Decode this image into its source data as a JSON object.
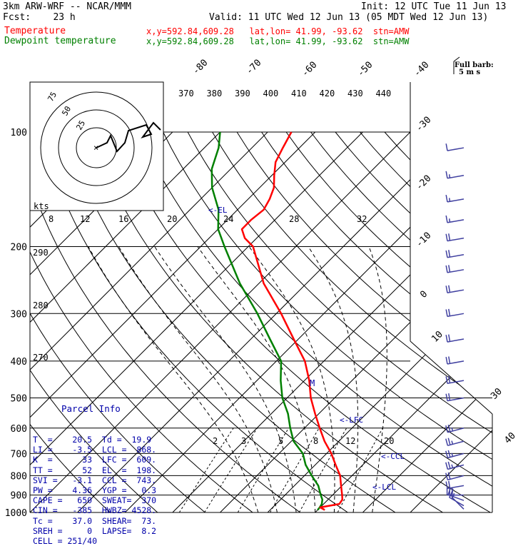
{
  "header": {
    "model": "3km ARW-WRF -- NCAR/MMM",
    "init": "Init: 12 UTC Tue 11 Jun 13",
    "fcst": "Fcst:    23 h",
    "valid": "Valid: 11 UTC Wed 12 Jun 13 (05 MDT Wed 12 Jun 13)",
    "temp_label": "Temperature",
    "dew_label": "Dewpoint temperature",
    "loc_line": "x,y=592.84,609.28   lat,lon= 41.99, -93.62  stn=AMW"
  },
  "colors": {
    "temperature": "#ff0000",
    "dewpoint": "#008000",
    "parcel_text": "#0000aa",
    "barbs": "#4040a0"
  },
  "full_barb_label": "Full barb:",
  "full_barb_value": "5 m s",
  "hodo": {
    "units": "kts",
    "ring_labels": [
      "75",
      "50",
      "25"
    ]
  },
  "parcel": {
    "title": "Parcel Info",
    "lines": [
      "T  =    20.5  Td =  19.9",
      "LI =    -3.5  LCL =  868.",
      "K  =      33  LFC =  609.",
      "TT =      52  EL  =  198.",
      "SVI =   -3.1  CCL =  743.",
      "PW =    4.36  YGP =   0.3",
      "CAPE =   650  SWEAT=  370",
      "CIN =   -385  HWBZ= 4528.",
      "Tc =    37.0  SHEAR=  73.",
      "SREH =     0  LAPSE=  8.2",
      "CELL = 251/40"
    ]
  },
  "level_markers": {
    "el": "<-EL",
    "lfc": "<-LFC",
    "ccl": "<-CCL",
    "lcl": "<-LCL",
    "m": "M"
  },
  "chart_data": {
    "type": "line",
    "subtype": "skew-T log-P",
    "pressure_axis": {
      "ticks": [
        100,
        200,
        300,
        400,
        500,
        600,
        700,
        800,
        900,
        1000
      ],
      "scale": "log",
      "range": [
        1000,
        100
      ]
    },
    "isotherm_labels": [
      -80,
      -70,
      -60,
      -50,
      -40,
      -30,
      -20,
      -10,
      0,
      10,
      20,
      30,
      40
    ],
    "theta_top_labels": [
      370,
      380,
      390,
      400,
      410,
      420,
      430,
      440
    ],
    "theta_side_labels": [
      290,
      280,
      270
    ],
    "mixing_ratio_labels": [
      2,
      3,
      5,
      8,
      12,
      20
    ],
    "theta_e_labels": [
      8,
      12,
      16,
      20,
      24,
      28,
      32
    ],
    "series": [
      {
        "name": "Temperature",
        "points": [
          [
            985,
            21.5
          ],
          [
            970,
            20.0
          ],
          [
            950,
            23.3
          ],
          [
            925,
            23.0
          ],
          [
            900,
            22.0
          ],
          [
            850,
            19.8
          ],
          [
            800,
            17.5
          ],
          [
            750,
            14.3
          ],
          [
            700,
            11.0
          ],
          [
            650,
            7.0
          ],
          [
            600,
            3.2
          ],
          [
            550,
            -0.8
          ],
          [
            500,
            -5.0
          ],
          [
            450,
            -9.0
          ],
          [
            400,
            -14.0
          ],
          [
            350,
            -21.0
          ],
          [
            300,
            -29.0
          ],
          [
            250,
            -39.0
          ],
          [
            200,
            -49.0
          ],
          [
            190,
            -52.5
          ],
          [
            180,
            -55.0
          ],
          [
            170,
            -55.0
          ],
          [
            160,
            -54.5
          ],
          [
            150,
            -55.5
          ],
          [
            140,
            -57.0
          ],
          [
            130,
            -59.5
          ],
          [
            120,
            -62.0
          ],
          [
            110,
            -63.5
          ],
          [
            100,
            -65.0
          ]
        ]
      },
      {
        "name": "Dewpoint temperature",
        "points": [
          [
            985,
            20.0
          ],
          [
            970,
            19.9
          ],
          [
            950,
            19.6
          ],
          [
            925,
            18.8
          ],
          [
            900,
            17.5
          ],
          [
            850,
            15.0
          ],
          [
            800,
            11.5
          ],
          [
            750,
            8.0
          ],
          [
            700,
            5.0
          ],
          [
            650,
            0.5
          ],
          [
            600,
            -3.0
          ],
          [
            550,
            -6.5
          ],
          [
            500,
            -11.0
          ],
          [
            450,
            -15.0
          ],
          [
            400,
            -19.0
          ],
          [
            350,
            -26.0
          ],
          [
            300,
            -34.0
          ],
          [
            250,
            -44.0
          ],
          [
            200,
            -55.0
          ],
          [
            180,
            -60.0
          ],
          [
            160,
            -64.0
          ],
          [
            140,
            -70.0
          ],
          [
            125,
            -74.0
          ],
          [
            110,
            -77.0
          ],
          [
            100,
            -80.0
          ]
        ]
      }
    ],
    "wind_barbs": [
      {
        "p": 980,
        "dir": 315,
        "spd": 5
      },
      {
        "p": 960,
        "dir": 300,
        "spd": 15
      },
      {
        "p": 930,
        "dir": 290,
        "spd": 25
      },
      {
        "p": 900,
        "dir": 270,
        "spd": 30
      },
      {
        "p": 850,
        "dir": 260,
        "spd": 20
      },
      {
        "p": 800,
        "dir": 255,
        "spd": 20
      },
      {
        "p": 750,
        "dir": 255,
        "spd": 25
      },
      {
        "p": 700,
        "dir": 255,
        "spd": 25
      },
      {
        "p": 650,
        "dir": 255,
        "spd": 25
      },
      {
        "p": 600,
        "dir": 255,
        "spd": 25
      },
      {
        "p": 500,
        "dir": 260,
        "spd": 20
      },
      {
        "p": 450,
        "dir": 260,
        "spd": 20
      },
      {
        "p": 400,
        "dir": 260,
        "spd": 20
      },
      {
        "p": 350,
        "dir": 260,
        "spd": 20
      },
      {
        "p": 300,
        "dir": 260,
        "spd": 20
      },
      {
        "p": 260,
        "dir": 260,
        "spd": 20
      },
      {
        "p": 230,
        "dir": 260,
        "spd": 20
      },
      {
        "p": 210,
        "dir": 260,
        "spd": 20
      },
      {
        "p": 190,
        "dir": 260,
        "spd": 20
      },
      {
        "p": 170,
        "dir": 260,
        "spd": 15
      },
      {
        "p": 150,
        "dir": 260,
        "spd": 15
      },
      {
        "p": 130,
        "dir": 260,
        "spd": 15
      },
      {
        "p": 110,
        "dir": 260,
        "spd": 10
      }
    ]
  }
}
